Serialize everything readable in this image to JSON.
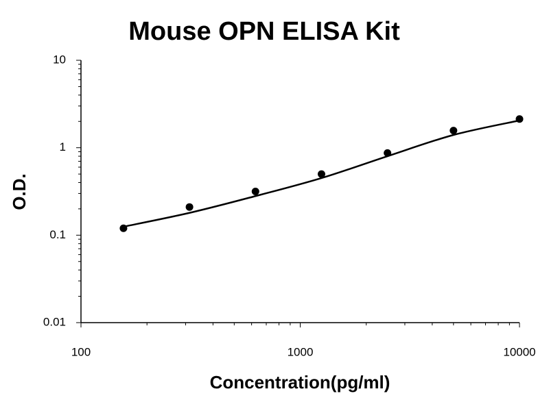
{
  "chart_data": {
    "type": "scatter",
    "title": "Mouse OPN ELISA Kit",
    "x_label": "Concentration(pg/ml)",
    "y_label": "O.D.",
    "x": [
      156.25,
      312.5,
      625,
      1250,
      2500,
      5000,
      10000
    ],
    "series": [
      {
        "color": "#000000",
        "style": "points",
        "values": [
          0.12,
          0.21,
          0.316,
          0.5,
          0.87,
          1.57,
          2.13
        ]
      },
      {
        "color": "#000000",
        "style": "line",
        "values": [
          0.125,
          0.18,
          0.28,
          0.45,
          0.8,
          1.4,
          2.05
        ]
      }
    ],
    "xlim": [
      100,
      10000
    ],
    "ylim": [
      0.01,
      10
    ],
    "xticks": [
      100,
      1000,
      10000
    ],
    "yticks": [
      0.01,
      0.1,
      1,
      10
    ],
    "xscale": "log",
    "yscale": "log",
    "grid": false
  }
}
